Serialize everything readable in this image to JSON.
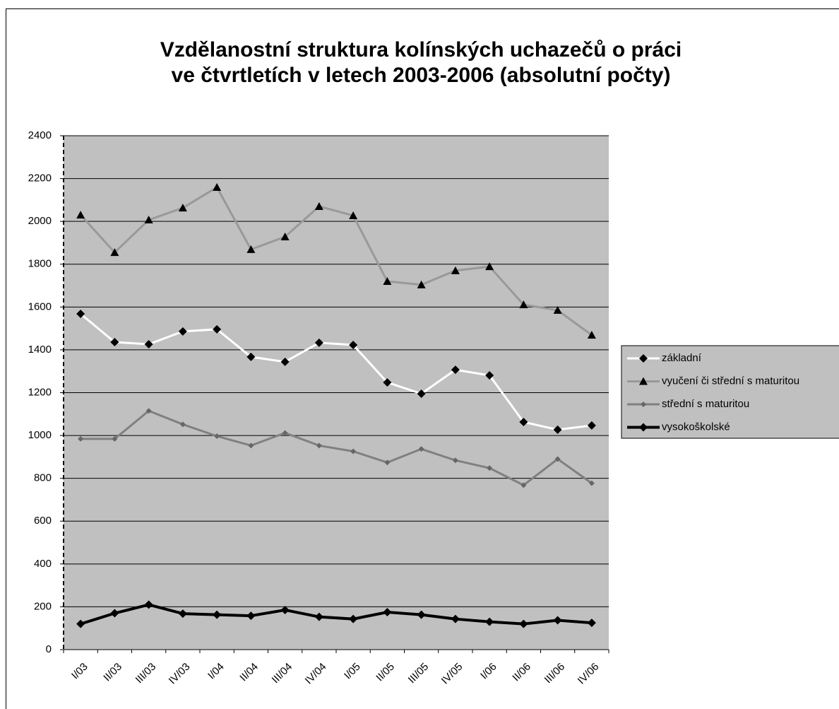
{
  "chart_data": {
    "type": "line",
    "title": [
      "Vzdělanostní struktura kolínských uchazečů o práci",
      "ve čtvrtletích v letech 2003-2006 (absolutní počty)"
    ],
    "categories": [
      "I/03",
      "II/03",
      "III/03",
      "IV/03",
      "I/04",
      "II/04",
      "III/04",
      "IV/04",
      "I/05",
      "II/05",
      "III/05",
      "IV/05",
      "I/06",
      "II/06",
      "III/06",
      "IV/06"
    ],
    "series": [
      {
        "name": "základní",
        "color": "#ffffff",
        "marker": "diamond",
        "marker_color": "#000000",
        "values": [
          1568,
          1436,
          1426,
          1486,
          1496,
          1367,
          1344,
          1433,
          1423,
          1248,
          1195,
          1307,
          1281,
          1063,
          1027,
          1047
        ]
      },
      {
        "name": "vyučení či střední s maturitou",
        "color": "#999999",
        "marker": "triangle",
        "marker_color": "#000000",
        "values": [
          2030,
          1855,
          2007,
          2063,
          2159,
          1869,
          1928,
          2070,
          2027,
          1720,
          1704,
          1770,
          1789,
          1611,
          1585,
          1469
        ]
      },
      {
        "name": "střední s maturitou",
        "color": "#808080",
        "marker": "small-diamond",
        "marker_color": "#666666",
        "values": [
          984,
          984,
          1115,
          1052,
          997,
          953,
          1012,
          953,
          926,
          874,
          937,
          884,
          848,
          768,
          890,
          777
        ]
      },
      {
        "name": "vysokoškolské",
        "color": "#000000",
        "marker": "diamond",
        "marker_color": "#000000",
        "values": [
          120,
          170,
          210,
          168,
          163,
          158,
          185,
          153,
          143,
          175,
          163,
          143,
          130,
          120,
          137,
          125
        ]
      }
    ],
    "ylim": [
      0,
      2400
    ],
    "yticks": [
      0,
      200,
      400,
      600,
      800,
      1000,
      1200,
      1400,
      1600,
      1800,
      2000,
      2200,
      2400
    ],
    "grid": true,
    "plot_background": "#c0c0c0",
    "legend": "right"
  }
}
